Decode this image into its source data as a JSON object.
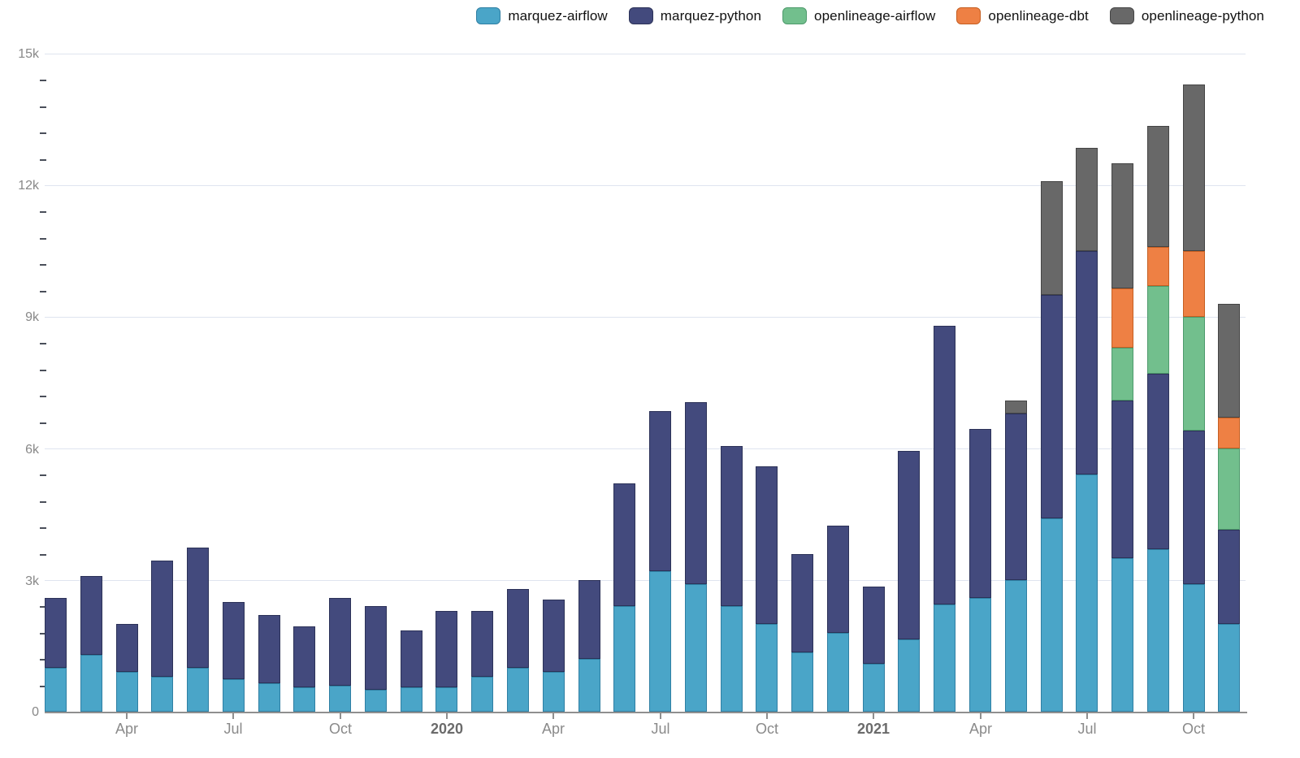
{
  "legend": {
    "items": [
      {
        "label": "marquez-airflow"
      },
      {
        "label": "marquez-python"
      },
      {
        "label": "openlineage-airflow"
      },
      {
        "label": "openlineage-dbt"
      },
      {
        "label": "openlineage-python"
      }
    ]
  },
  "chart_data": {
    "type": "bar",
    "stacked": true,
    "title": "",
    "xlabel": "",
    "ylabel": "",
    "ylim": [
      0,
      15000
    ],
    "grid": "horizontal",
    "legend_position": "top-right",
    "ytick_labels": [
      "0",
      "3k",
      "6k",
      "9k",
      "12k",
      "15k"
    ],
    "ytick_values": [
      0,
      3000,
      6000,
      9000,
      12000,
      15000
    ],
    "minor_tick_step": 600,
    "categories": [
      "Feb 2019",
      "Mar 2019",
      "Apr 2019",
      "May 2019",
      "Jun 2019",
      "Jul 2019",
      "Aug 2019",
      "Sep 2019",
      "Oct 2019",
      "Nov 2019",
      "Dec 2019",
      "Jan 2020",
      "Feb 2020",
      "Mar 2020",
      "Apr 2020",
      "May 2020",
      "Jun 2020",
      "Jul 2020",
      "Aug 2020",
      "Sep 2020",
      "Oct 2020",
      "Nov 2020",
      "Dec 2020",
      "Jan 2021",
      "Feb 2021",
      "Mar 2021",
      "Apr 2021",
      "May 2021",
      "Jun 2021",
      "Jul 2021",
      "Aug 2021",
      "Sep 2021",
      "Oct 2021",
      "Nov 2021"
    ],
    "xticks": [
      {
        "label": "Apr",
        "index": 2,
        "bold": false
      },
      {
        "label": "Jul",
        "index": 5,
        "bold": false
      },
      {
        "label": "Oct",
        "index": 8,
        "bold": false
      },
      {
        "label": "2020",
        "index": 11,
        "bold": true
      },
      {
        "label": "Apr",
        "index": 14,
        "bold": false
      },
      {
        "label": "Jul",
        "index": 17,
        "bold": false
      },
      {
        "label": "Oct",
        "index": 20,
        "bold": false
      },
      {
        "label": "2021",
        "index": 23,
        "bold": true
      },
      {
        "label": "Apr",
        "index": 26,
        "bold": false
      },
      {
        "label": "Jul",
        "index": 29,
        "bold": false
      },
      {
        "label": "Oct",
        "index": 32,
        "bold": false
      }
    ],
    "series": [
      {
        "name": "marquez-airflow",
        "color": "#4aa5c8",
        "border": "#2f7fa3",
        "values": [
          1000,
          1300,
          900,
          800,
          1000,
          750,
          650,
          550,
          600,
          500,
          550,
          550,
          800,
          1000,
          900,
          1200,
          2400,
          3200,
          2900,
          2400,
          2000,
          1350,
          1800,
          1100,
          1650,
          2450,
          2600,
          3000,
          4400,
          5400,
          3500,
          3700,
          2900,
          2000
        ]
      },
      {
        "name": "marquez-python",
        "color": "#434a7d",
        "border": "#2c3258",
        "values": [
          1600,
          1800,
          1100,
          2650,
          2750,
          1750,
          1550,
          1400,
          2000,
          1900,
          1300,
          1750,
          1500,
          1800,
          1650,
          1800,
          2800,
          3650,
          4150,
          3650,
          3600,
          2250,
          2450,
          1750,
          4300,
          6350,
          3850,
          3800,
          5100,
          5100,
          3600,
          4000,
          3500,
          2150
        ]
      },
      {
        "name": "openlineage-airflow",
        "color": "#72bf8d",
        "border": "#4e9a6c",
        "values": [
          0,
          0,
          0,
          0,
          0,
          0,
          0,
          0,
          0,
          0,
          0,
          0,
          0,
          0,
          0,
          0,
          0,
          0,
          0,
          0,
          0,
          0,
          0,
          0,
          0,
          0,
          0,
          0,
          0,
          0,
          1200,
          2000,
          2600,
          1850
        ]
      },
      {
        "name": "openlineage-dbt",
        "color": "#ee8044",
        "border": "#c55f22",
        "values": [
          0,
          0,
          0,
          0,
          0,
          0,
          0,
          0,
          0,
          0,
          0,
          0,
          0,
          0,
          0,
          0,
          0,
          0,
          0,
          0,
          0,
          0,
          0,
          0,
          0,
          0,
          0,
          0,
          0,
          0,
          1350,
          900,
          1500,
          700
        ]
      },
      {
        "name": "openlineage-python",
        "color": "#686868",
        "border": "#454545",
        "values": [
          0,
          0,
          0,
          0,
          0,
          0,
          0,
          0,
          0,
          0,
          0,
          0,
          0,
          0,
          0,
          0,
          0,
          0,
          0,
          0,
          0,
          0,
          0,
          0,
          0,
          0,
          0,
          300,
          2600,
          2350,
          2850,
          2750,
          3800,
          2600
        ]
      }
    ]
  }
}
